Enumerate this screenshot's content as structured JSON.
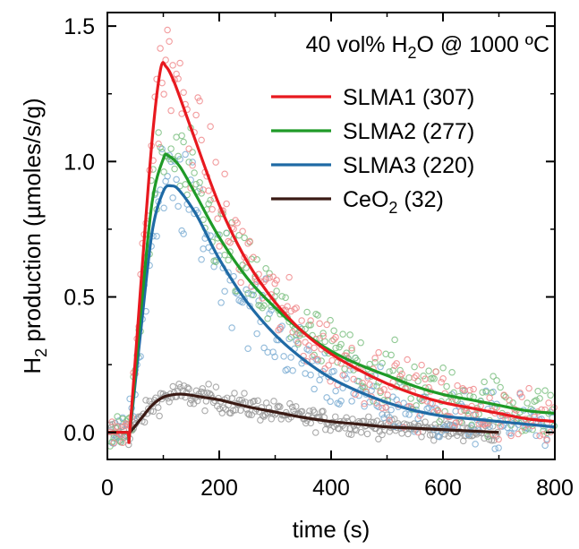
{
  "chart_data": {
    "type": "line",
    "annotation": {
      "text": "40 vol% H",
      "sub": "2",
      "rest": "O @ 1000 ºC"
    },
    "xlabel": "time (s)",
    "ylabel": {
      "pre": "H",
      "sub": "2",
      "post": " production (µmoles/s/g)"
    },
    "xlim": [
      0,
      800
    ],
    "ylim": [
      -0.1,
      1.55
    ],
    "xticks": [
      0,
      200,
      400,
      600,
      800
    ],
    "yticks": [
      0.0,
      0.5,
      1.0,
      1.5
    ],
    "xtick_labels": [
      "0",
      "200",
      "400",
      "600",
      "800"
    ],
    "ytick_labels": [
      "0.0",
      "0.5",
      "1.0",
      "1.5"
    ],
    "legend_position": "top-right",
    "series": [
      {
        "name": "SLMA1 (307)",
        "name_main": "SLMA1 (307)",
        "name_sub": "",
        "name_post": "",
        "color": "#e8191f",
        "scatter_color": "#f08a8c",
        "x": [
          0,
          35,
          40,
          60,
          80,
          95,
          105,
          120,
          150,
          200,
          250,
          300,
          350,
          400,
          450,
          500,
          550,
          600,
          650,
          700,
          750,
          800
        ],
        "y": [
          0.0,
          0.0,
          0.0,
          0.55,
          1.08,
          1.34,
          1.35,
          1.29,
          1.12,
          0.84,
          0.63,
          0.48,
          0.37,
          0.29,
          0.23,
          0.18,
          0.14,
          0.11,
          0.09,
          0.07,
          0.05,
          0.04
        ]
      },
      {
        "name": "SLMA2 (277)",
        "name_main": "SLMA2 (277)",
        "name_sub": "",
        "name_post": "",
        "color": "#1f9a27",
        "scatter_color": "#7cc081",
        "x": [
          0,
          35,
          40,
          60,
          80,
          100,
          110,
          130,
          160,
          200,
          250,
          300,
          350,
          400,
          450,
          500,
          550,
          600,
          650,
          700,
          750,
          800
        ],
        "y": [
          0.0,
          0.0,
          0.0,
          0.45,
          0.85,
          1.01,
          1.02,
          0.98,
          0.87,
          0.72,
          0.57,
          0.46,
          0.37,
          0.3,
          0.25,
          0.21,
          0.17,
          0.14,
          0.12,
          0.1,
          0.08,
          0.07
        ]
      },
      {
        "name": "SLMA3 (220)",
        "name_main": "SLMA3 (220)",
        "name_sub": "",
        "name_post": "",
        "color": "#1f6aa5",
        "scatter_color": "#7eaed3",
        "x": [
          0,
          35,
          40,
          60,
          80,
          100,
          115,
          130,
          160,
          200,
          250,
          300,
          350,
          400,
          450,
          500,
          550,
          600,
          650,
          700,
          750,
          800
        ],
        "y": [
          0.0,
          0.0,
          0.0,
          0.38,
          0.74,
          0.89,
          0.91,
          0.89,
          0.8,
          0.64,
          0.48,
          0.36,
          0.27,
          0.2,
          0.15,
          0.11,
          0.08,
          0.06,
          0.05,
          0.04,
          0.03,
          0.02
        ]
      },
      {
        "name": "CeO2 (32)",
        "name_main": "CeO",
        "name_sub": "2",
        "name_post": " (32)",
        "color": "#3a1a14",
        "scatter_color": "#9b9b9b",
        "x": [
          0,
          35,
          40,
          60,
          80,
          100,
          120,
          140,
          170,
          200,
          250,
          300,
          350,
          400,
          450,
          500,
          550,
          600,
          650,
          700
        ],
        "y": [
          0.0,
          0.0,
          0.0,
          0.05,
          0.1,
          0.13,
          0.14,
          0.14,
          0.13,
          0.12,
          0.095,
          0.075,
          0.055,
          0.04,
          0.03,
          0.02,
          0.015,
          0.01,
          0.005,
          0.0
        ]
      }
    ]
  }
}
